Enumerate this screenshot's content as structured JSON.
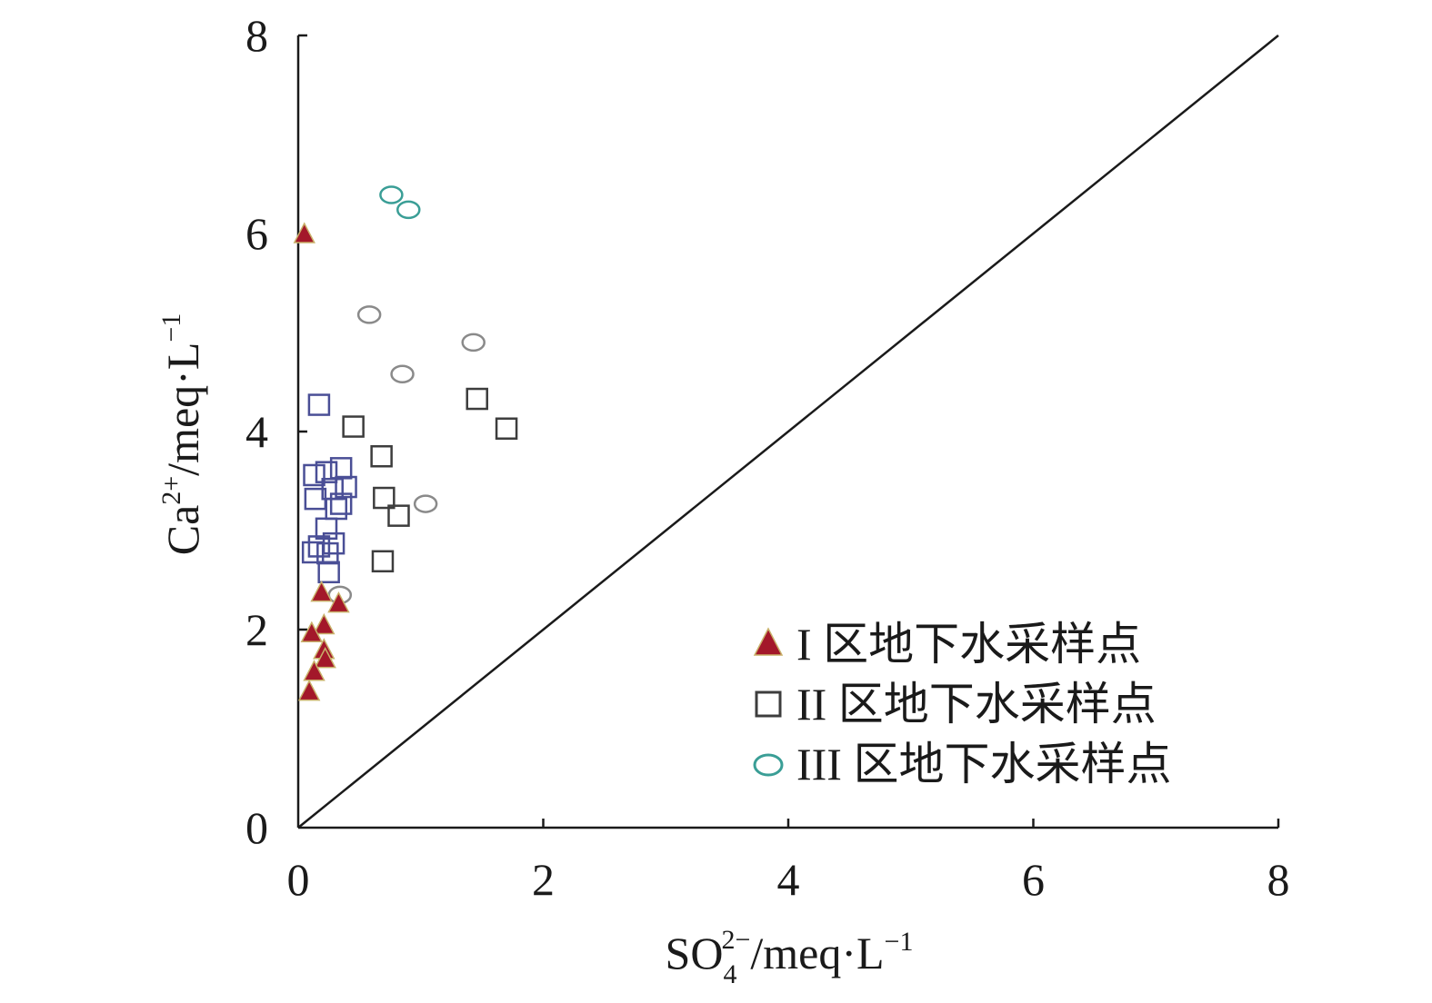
{
  "chart_data": {
    "type": "scatter",
    "title": "",
    "xlabel": {
      "base": "SO",
      "sub": "4",
      "sup": "2−",
      "unit": "/meq·L",
      "unit_sup": "−1"
    },
    "ylabel": {
      "base": "Ca",
      "sup": "2+",
      "unit": "/meq·L",
      "unit_sup": "−1"
    },
    "xlim": [
      0,
      8
    ],
    "ylim": [
      0,
      8
    ],
    "xticks": [
      "0",
      "2",
      "4",
      "6",
      "8"
    ],
    "yticks": [
      "0",
      "2",
      "4",
      "6",
      "8"
    ],
    "grid": false,
    "legend_position": "bottom-right",
    "reference_line": {
      "x": [
        0,
        8
      ],
      "y": [
        0,
        8
      ],
      "color": "#1a1a1a"
    },
    "series": [
      {
        "name": "I 区地下水采样点",
        "marker": "triangle",
        "color": "#a3182a",
        "points": [
          [
            0.05,
            6.0
          ],
          [
            0.19,
            2.38
          ],
          [
            0.33,
            2.27
          ],
          [
            0.21,
            2.05
          ],
          [
            0.11,
            1.97
          ],
          [
            0.21,
            1.8
          ],
          [
            0.22,
            1.71
          ],
          [
            0.13,
            1.58
          ],
          [
            0.09,
            1.38
          ]
        ]
      },
      {
        "name": "II 区地下水采样点",
        "marker": "square",
        "color": "#3d3d3d",
        "points": [
          [
            0.17,
            4.27
          ],
          [
            0.45,
            4.05
          ],
          [
            0.68,
            3.75
          ],
          [
            0.35,
            3.63
          ],
          [
            0.13,
            3.56
          ],
          [
            0.23,
            3.59
          ],
          [
            0.39,
            3.44
          ],
          [
            0.28,
            3.42
          ],
          [
            0.14,
            3.32
          ],
          [
            0.35,
            3.27
          ],
          [
            0.7,
            3.33
          ],
          [
            0.31,
            3.22
          ],
          [
            0.82,
            3.15
          ],
          [
            0.23,
            3.02
          ],
          [
            0.29,
            2.87
          ],
          [
            0.17,
            2.84
          ],
          [
            0.12,
            2.78
          ],
          [
            0.24,
            2.77
          ],
          [
            0.69,
            2.69
          ],
          [
            0.25,
            2.58
          ],
          [
            1.46,
            4.33
          ],
          [
            1.7,
            4.03
          ]
        ]
      },
      {
        "name": "III 区地下水采样点",
        "marker": "circle",
        "color": "#3a9e96",
        "points": [
          [
            0.76,
            6.39
          ],
          [
            0.9,
            6.24
          ],
          [
            0.58,
            5.18
          ],
          [
            1.43,
            4.9
          ],
          [
            0.85,
            4.58
          ],
          [
            1.04,
            3.27
          ],
          [
            0.34,
            2.35
          ]
        ]
      }
    ]
  }
}
